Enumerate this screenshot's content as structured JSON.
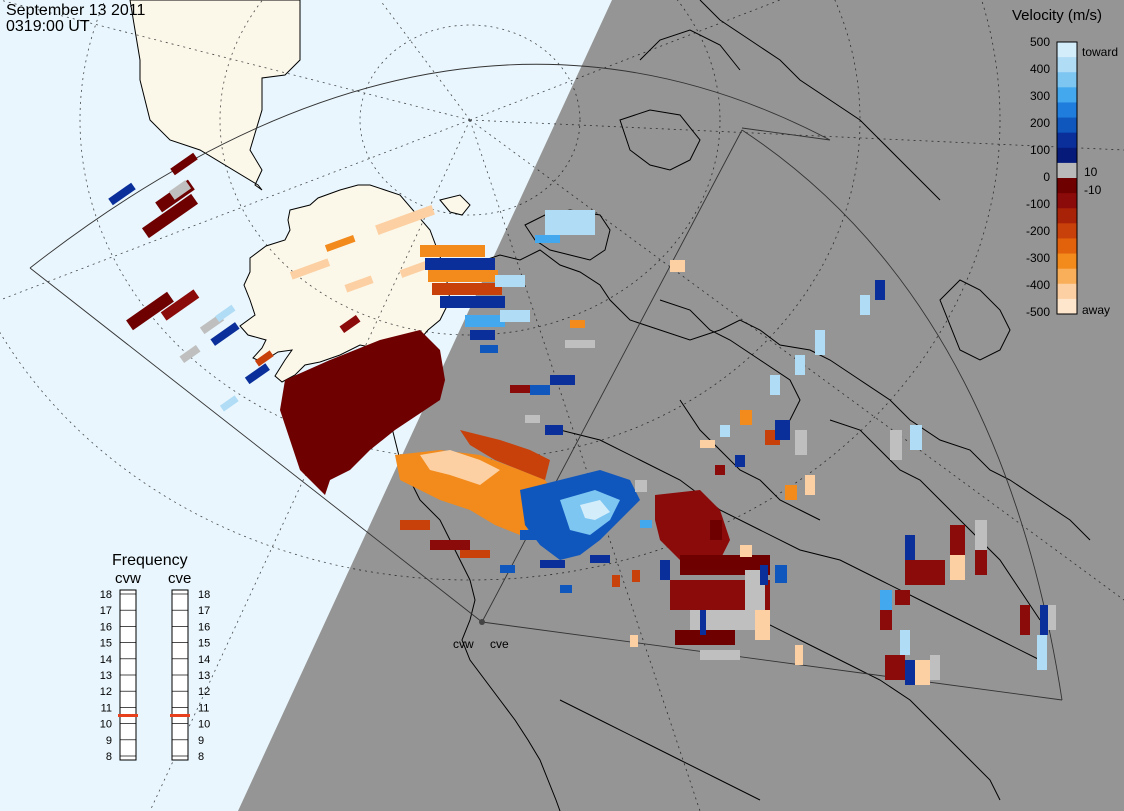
{
  "header": {
    "date": "September 13 2011",
    "time": "0319:00 UT"
  },
  "colorbar": {
    "title": "Velocity (m/s)",
    "ticks": [
      "500",
      "400",
      "300",
      "200",
      "100",
      "10",
      "0",
      "-10",
      "-100",
      "-200",
      "-300",
      "-400",
      "-500"
    ],
    "toward_label": "toward",
    "away_label": "away",
    "colors_top_to_bottom": [
      "#d4edfa",
      "#b0dcf6",
      "#7dc6f2",
      "#44a8ee",
      "#1f7ddd",
      "#0f56bd",
      "#0a2f9a",
      "#061a7a",
      "#b9b9b9",
      "#6e0000",
      "#8b0a0a",
      "#a82208",
      "#c8400a",
      "#e2620c",
      "#f28a1c",
      "#f9ae5a",
      "#fcd0a2",
      "#fde6cc"
    ]
  },
  "frequency_panel": {
    "title": "Frequency",
    "radars": [
      {
        "code": "cvw",
        "frequency_mhz": 10.5
      },
      {
        "code": "cve",
        "frequency_mhz": 10.5
      }
    ],
    "scale": [
      "18",
      "17",
      "16",
      "15",
      "14",
      "13",
      "12",
      "11",
      "10",
      "9",
      "8"
    ],
    "marker_color": "#e8401c"
  },
  "radar_sites": [
    {
      "code": "cvw"
    },
    {
      "code": "cve"
    }
  ],
  "colors": {
    "night_side": "#959595",
    "day_ocean": "#e9f6fd",
    "day_land": "#fbf8ea",
    "coastline": "#000000",
    "ground_scatter": "#bfbfbf"
  }
}
